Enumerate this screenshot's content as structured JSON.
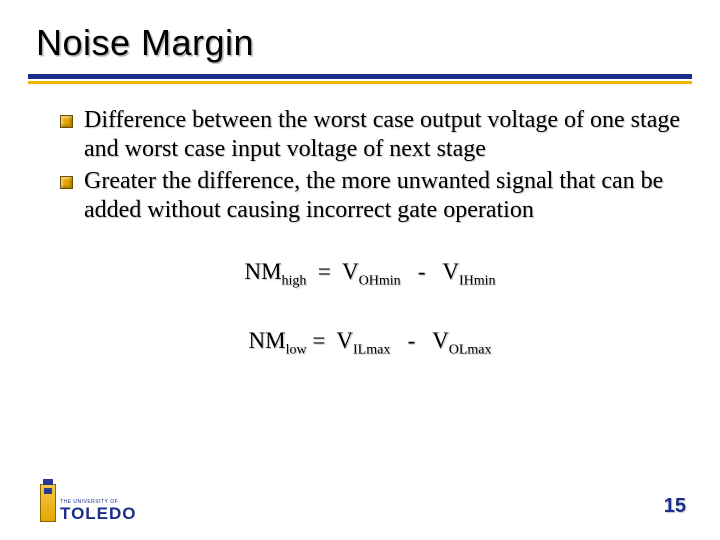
{
  "title": "Noise Margin",
  "bullets": [
    "Difference between the worst case output voltage of one stage and worst case input voltage of next stage",
    "Greater the difference, the more unwanted signal that can be added without causing incorrect gate operation"
  ],
  "equations": {
    "eq1": {
      "lhs": "NM",
      "lhs_sub": "high",
      "rhs1": "V",
      "rhs1_sub": "OHmin",
      "op": "-",
      "rhs2": "V",
      "rhs2_sub": "IHmin"
    },
    "eq2": {
      "lhs": "NM",
      "lhs_sub": "low",
      "rhs1": "V",
      "rhs1_sub": "ILmax",
      "op": "-",
      "rhs2": "V",
      "rhs2_sub": "OLmax"
    }
  },
  "logo": {
    "small": "THE UNIVERSITY OF",
    "big": "TOLEDO"
  },
  "page_number": "15",
  "colors": {
    "rule_blue": "#1a2e8a",
    "rule_gold": "#f1b400",
    "bullet_fill": "#e8a500",
    "text": "#000000",
    "page_num": "#1a2e8a"
  }
}
